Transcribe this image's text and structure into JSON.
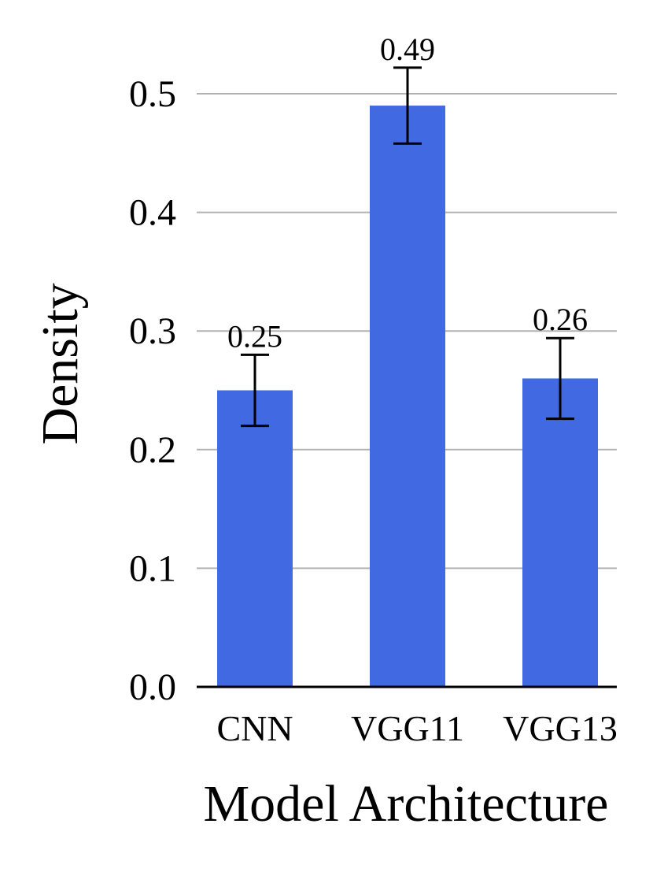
{
  "chart_data": {
    "type": "bar",
    "title": "",
    "xlabel": "Model Architecture",
    "ylabel": "Density",
    "categories": [
      "CNN",
      "VGG11",
      "VGG13"
    ],
    "values": [
      0.25,
      0.49,
      0.26
    ],
    "value_labels": [
      "0.25",
      "0.49",
      "0.26"
    ],
    "error_low": [
      0.22,
      0.458,
      0.226
    ],
    "error_high": [
      0.28,
      0.522,
      0.294
    ],
    "ylim": [
      0,
      0.5
    ],
    "yticks": [
      0.0,
      0.1,
      0.2,
      0.3,
      0.4,
      0.5
    ],
    "ytick_labels": [
      "0.0",
      "0.1",
      "0.2",
      "0.3",
      "0.4",
      "0.5"
    ],
    "grid": true,
    "legend": false,
    "colors": {
      "bar": "#4169e1",
      "grid": "#b3b3b3",
      "axis": "#000000"
    }
  }
}
